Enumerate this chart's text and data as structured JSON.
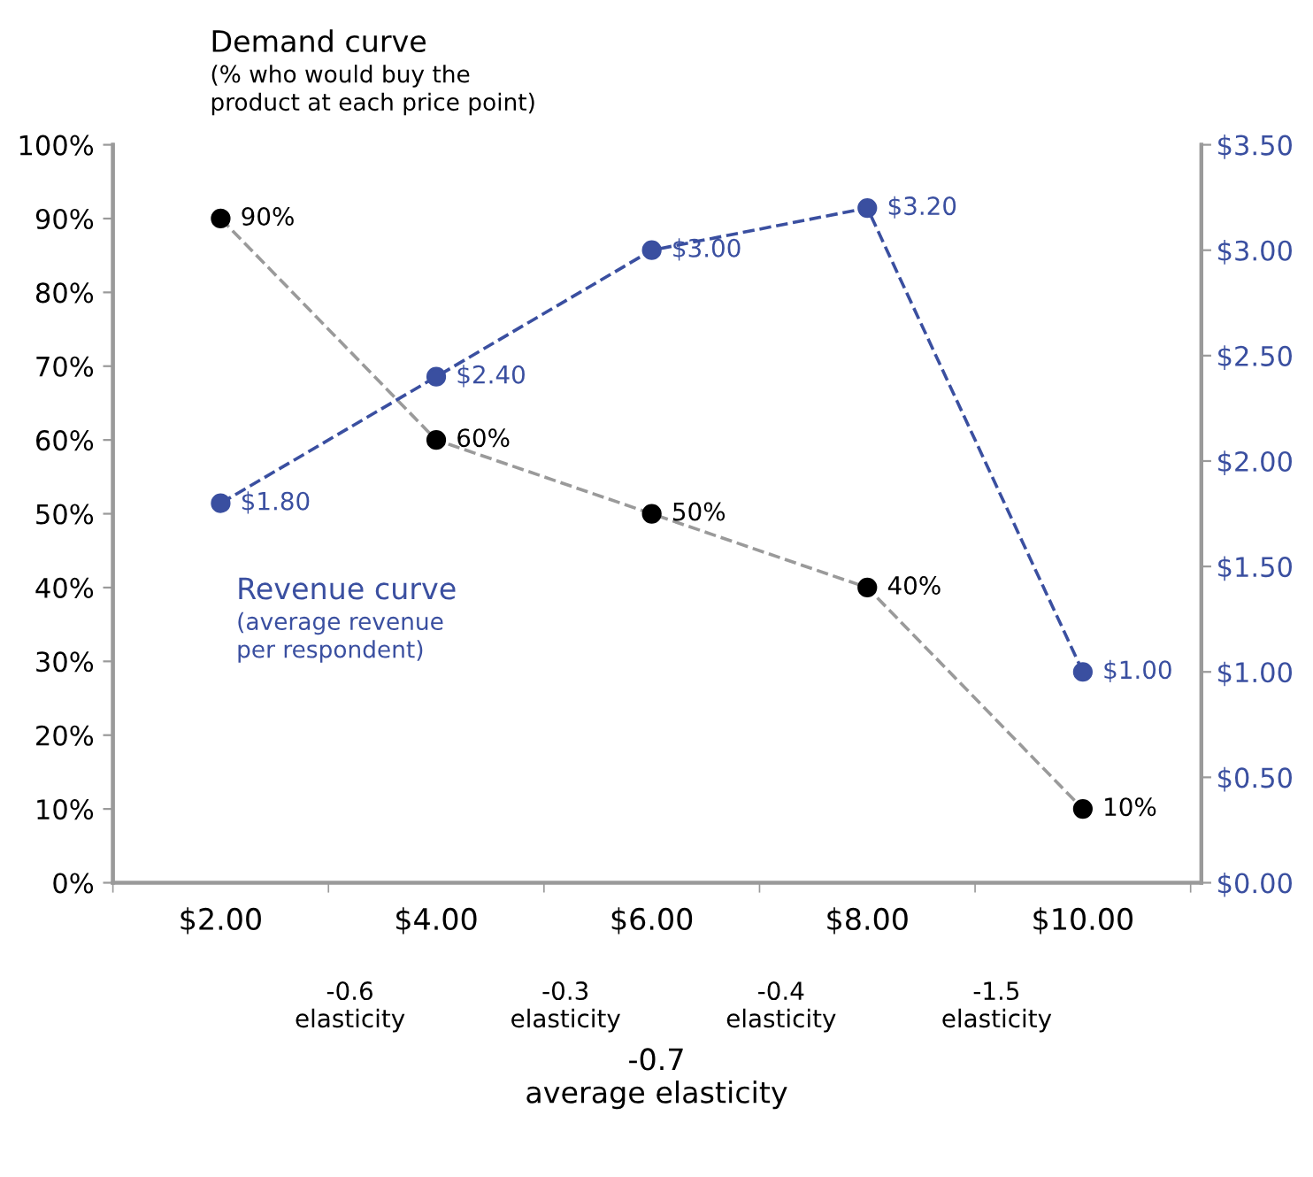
{
  "chart_data": {
    "type": "line",
    "categories": [
      "$2.00",
      "$4.00",
      "$6.00",
      "$8.00",
      "$10.00"
    ],
    "series": [
      {
        "name": "Demand curve\n(% who would buy the\nproduct at each price point)",
        "color": "#000000",
        "values": [
          90,
          60,
          50,
          40,
          10
        ],
        "value_labels": [
          "90%",
          "60%",
          "50%",
          "40%",
          "10%"
        ]
      },
      {
        "name": "Revenue curve\n(average revenue\nper respondent)",
        "color": "#3a4fa0",
        "axis": "y2",
        "values": [
          1.8,
          2.4,
          3.0,
          3.2,
          1.0
        ],
        "value_labels": [
          "$1.80",
          "$2.40",
          "$3.00",
          "$3.20",
          "$1.00"
        ]
      }
    ],
    "ylim": [
      0,
      100
    ],
    "yticks": [
      {
        "value": 0,
        "label": "0%"
      },
      {
        "value": 10,
        "label": "10%"
      },
      {
        "value": 20,
        "label": "20%"
      },
      {
        "value": 30,
        "label": "30%"
      },
      {
        "value": 40,
        "label": "40%"
      },
      {
        "value": 50,
        "label": "50%"
      },
      {
        "value": 60,
        "label": "60%"
      },
      {
        "value": 70,
        "label": "70%"
      },
      {
        "value": 80,
        "label": "80%"
      },
      {
        "value": 90,
        "label": "90%"
      },
      {
        "value": 100,
        "label": "100%"
      }
    ],
    "y2lim": [
      0,
      3.5
    ],
    "y2ticks": [
      {
        "value": 0,
        "label": "$0.00"
      },
      {
        "value": 0.5,
        "label": "$0.50"
      },
      {
        "value": 1.0,
        "label": "$1.00"
      },
      {
        "value": 1.5,
        "label": "$1.50"
      },
      {
        "value": 2.0,
        "label": "$2.00"
      },
      {
        "value": 2.5,
        "label": "$2.50"
      },
      {
        "value": 3.0,
        "label": "$3.00"
      },
      {
        "value": 3.5,
        "label": "$3.50"
      }
    ],
    "annotations": [
      "-0.6\nelasticity",
      "-0.3\nelasticity",
      "-0.4\nelasticity",
      "-1.5\nelasticity",
      "-0.7\naverage elasticity"
    ],
    "marker": "circle",
    "line_style": "dashed",
    "grid": false,
    "legend": false
  }
}
